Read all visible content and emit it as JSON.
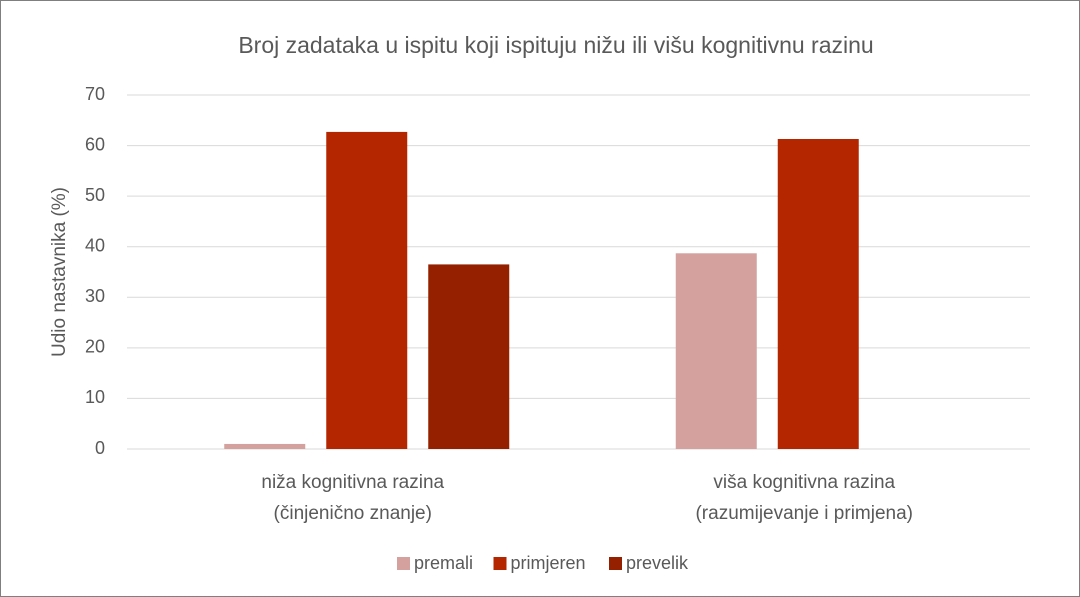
{
  "chart_data": {
    "type": "bar",
    "title": "Broj zadataka u ispitu koji ispituju nižu ili višu kognitivnu razinu",
    "y_label": "Udio nastavnika (%)",
    "categories": [
      [
        "niža kognitivna razina",
        "(činjenično znanje)"
      ],
      [
        "viša kognitivna razina",
        "(razumijevanje i primjena)"
      ]
    ],
    "series": [
      {
        "name": "premali",
        "color": "#d4a19f",
        "values": [
          1,
          38.7
        ]
      },
      {
        "name": "primjeren",
        "color": "#b32600",
        "values": [
          62.7,
          61.3
        ]
      },
      {
        "name": "prevelik",
        "color": "#942000",
        "values": [
          36.5,
          0
        ]
      }
    ],
    "ylim": [
      0,
      70
    ],
    "yticks": [
      0,
      10,
      20,
      30,
      40,
      50,
      60,
      70
    ],
    "grid": true,
    "legend": "bottom"
  }
}
